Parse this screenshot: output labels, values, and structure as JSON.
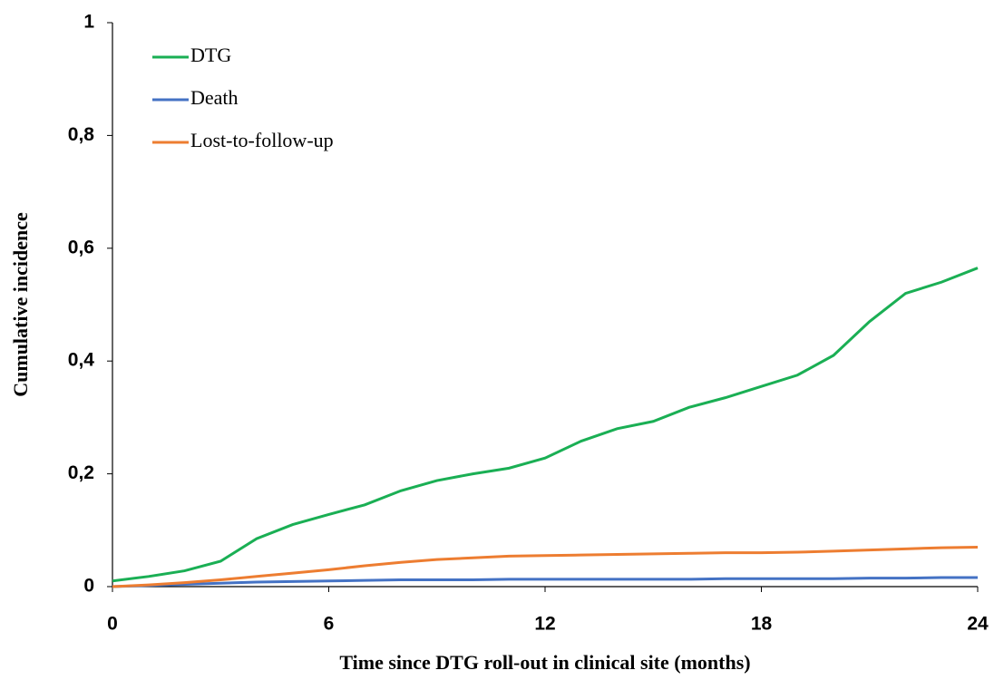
{
  "chart_data": {
    "type": "line",
    "xlabel": "Time since DTG roll-out in clinical site (months)",
    "ylabel": "Cumulative incidence",
    "x": [
      0,
      1,
      2,
      3,
      4,
      5,
      6,
      7,
      8,
      9,
      10,
      11,
      12,
      13,
      14,
      15,
      16,
      17,
      18,
      19,
      20,
      21,
      22,
      23,
      24
    ],
    "series": [
      {
        "name": "DTG",
        "color": "#1aaf54",
        "values": [
          0.01,
          0.018,
          0.028,
          0.045,
          0.085,
          0.11,
          0.128,
          0.145,
          0.17,
          0.188,
          0.2,
          0.21,
          0.228,
          0.258,
          0.28,
          0.293,
          0.318,
          0.335,
          0.355,
          0.375,
          0.41,
          0.47,
          0.52,
          0.54,
          0.565
        ]
      },
      {
        "name": "Death",
        "color": "#4472c4",
        "values": [
          0,
          0.002,
          0.004,
          0.006,
          0.008,
          0.009,
          0.01,
          0.011,
          0.012,
          0.012,
          0.012,
          0.013,
          0.013,
          0.013,
          0.013,
          0.013,
          0.013,
          0.014,
          0.014,
          0.014,
          0.014,
          0.015,
          0.015,
          0.016,
          0.016
        ]
      },
      {
        "name": "Lost-to-follow-up",
        "color": "#ed7d31",
        "values": [
          0,
          0.003,
          0.007,
          0.012,
          0.018,
          0.024,
          0.03,
          0.037,
          0.043,
          0.048,
          0.051,
          0.054,
          0.055,
          0.056,
          0.057,
          0.058,
          0.059,
          0.06,
          0.06,
          0.061,
          0.063,
          0.065,
          0.067,
          0.069,
          0.07
        ]
      }
    ],
    "xlim": [
      0,
      24
    ],
    "xticks": [
      0,
      6,
      12,
      18,
      24
    ],
    "ylim": [
      0,
      1
    ],
    "yticks": [
      0,
      {
        "value": 0.2,
        "label": "0,2"
      },
      {
        "value": 0.4,
        "label": "0,4"
      },
      {
        "value": 0.6,
        "label": "0,6"
      },
      {
        "value": 0.8,
        "label": "0,8"
      },
      1
    ],
    "legend": "top-left",
    "grid": false
  }
}
